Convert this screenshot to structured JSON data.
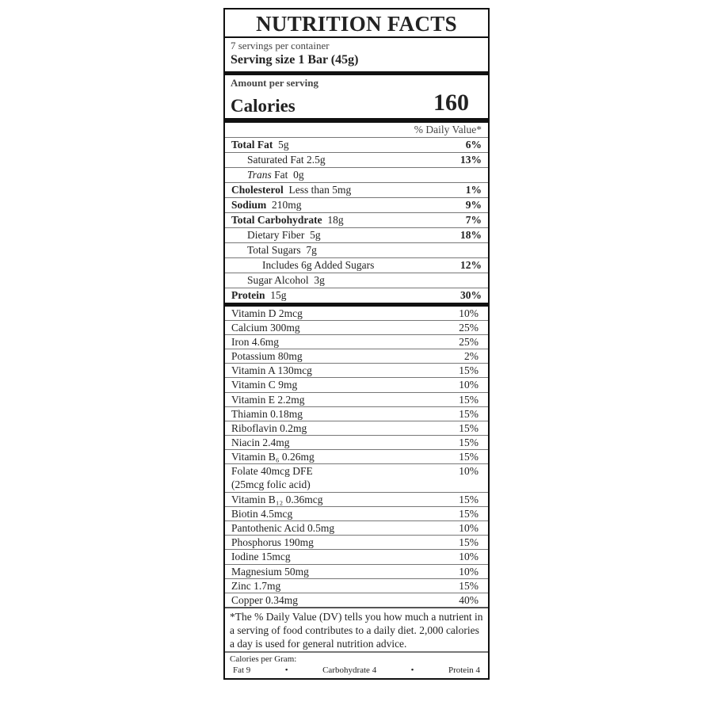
{
  "title": "NUTRITION FACTS",
  "servings_per_container": "7 servings per container",
  "serving_size": "Serving size  1 Bar (45g)",
  "amount_per_serving": "Amount per serving",
  "calories_label": "Calories",
  "calories_value": "160",
  "daily_value_header": "% Daily Value*",
  "nutrients": [
    {
      "name": "Total Fat",
      "amount": "5g",
      "dv": "6%"
    },
    {
      "name": "Saturated Fat",
      "amount": "2.5g",
      "dv": "13%"
    },
    {
      "name": "Trans",
      "name_suffix": "Fat",
      "amount": "0g",
      "dv": ""
    },
    {
      "name": "Cholesterol",
      "amount": "Less than 5mg",
      "dv": "1%"
    },
    {
      "name": "Sodium",
      "amount": "210mg",
      "dv": "9%"
    },
    {
      "name": "Total Carbohydrate",
      "amount": "18g",
      "dv": "7%"
    },
    {
      "name": "Dietary Fiber",
      "amount": "5g",
      "dv": "18%"
    },
    {
      "name": "Total Sugars",
      "amount": "7g",
      "dv": ""
    },
    {
      "name": "Includes 6g Added Sugars",
      "amount": "",
      "dv": "12%"
    },
    {
      "name": "Sugar Alcohol",
      "amount": "3g",
      "dv": ""
    },
    {
      "name": "Protein",
      "amount": "15g",
      "dv": "30%"
    }
  ],
  "vitamins": [
    {
      "text": "Vitamin D  2mcg",
      "dv": "10%"
    },
    {
      "text": "Calcium  300mg",
      "dv": "25%"
    },
    {
      "text": "Iron  4.6mg",
      "dv": "25%"
    },
    {
      "text": "Potassium  80mg",
      "dv": "2%"
    },
    {
      "text": "Vitamin A  130mcg",
      "dv": "15%"
    },
    {
      "text": "Vitamin C  9mg",
      "dv": "10%"
    },
    {
      "text": "Vitamin E  2.2mg",
      "dv": "15%"
    },
    {
      "text": "Thiamin  0.18mg",
      "dv": "15%"
    },
    {
      "text": "Riboflavin  0.2mg",
      "dv": "15%"
    },
    {
      "text": "Niacin  2.4mg",
      "dv": "15%"
    },
    {
      "text": "Vitamin B₆  0.26mg",
      "dv": "15%"
    },
    {
      "text": "Folate  40mcg DFE",
      "text2": "(25mcg folic acid)",
      "dv": "10%"
    },
    {
      "text": "Vitamin B₁₂  0.36mcg",
      "dv": "15%"
    },
    {
      "text": "Biotin  4.5mcg",
      "dv": "15%"
    },
    {
      "text": "Pantothenic Acid  0.5mg",
      "dv": "10%"
    },
    {
      "text": "Phosphorus  190mg",
      "dv": "15%"
    },
    {
      "text": "Iodine  15mcg",
      "dv": "10%"
    },
    {
      "text": "Magnesium  50mg",
      "dv": "10%"
    },
    {
      "text": "Zinc  1.7mg",
      "dv": "15%"
    },
    {
      "text": "Copper  0.34mg",
      "dv": "40%"
    }
  ],
  "footnote": "*The % Daily Value (DV) tells you how much a nutrient in a serving of food contributes to a daily diet.  2,000 calories a day is used for general nutrition advice.",
  "calories_per_gram": {
    "label": "Calories per Gram:",
    "fat": "Fat 9",
    "bullet": "•",
    "carbohydrate": "Carbohydrate 4",
    "protein": "Protein 4"
  }
}
